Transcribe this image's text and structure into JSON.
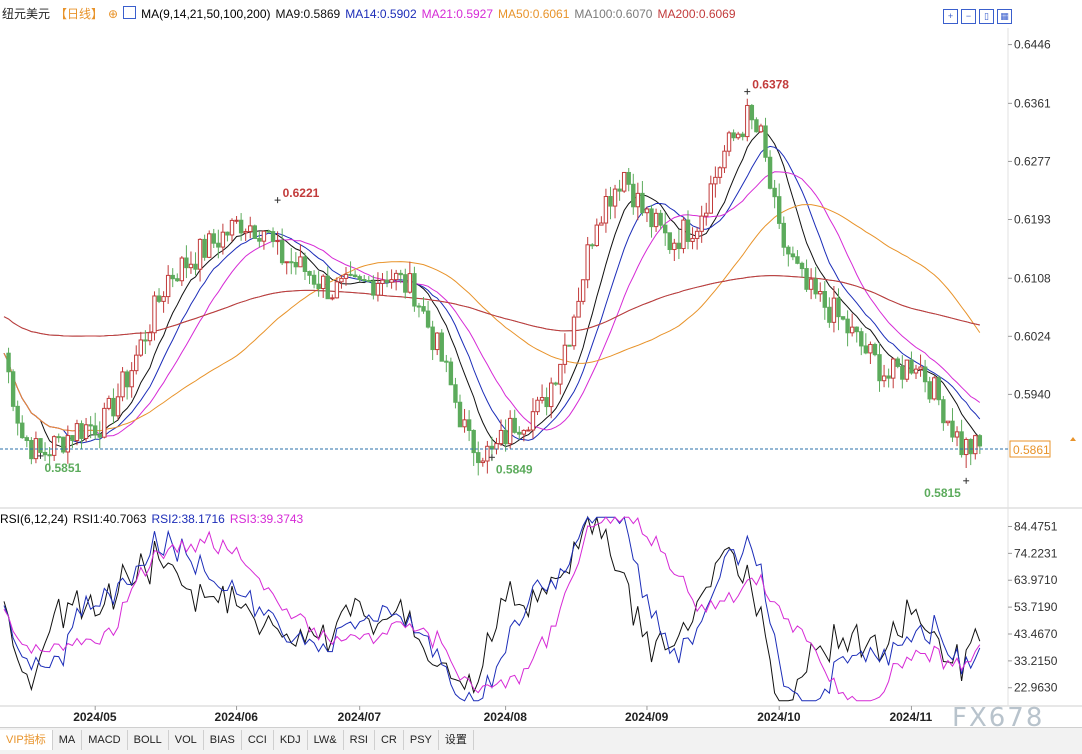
{
  "header": {
    "title": "纽元美元",
    "period": "【日线】",
    "ma_label": "MA(9,14,21,50,100,200)",
    "ma_values": [
      {
        "label": "MA9:0.5869",
        "color": "#111111"
      },
      {
        "label": "MA14:0.5902",
        "color": "#1c2db8"
      },
      {
        "label": "MA21:0.5927",
        "color": "#d62ad6"
      },
      {
        "label": "MA50:0.6061",
        "color": "#e8932a"
      },
      {
        "label": "MA100:0.6070",
        "color": "#7a7a7a"
      },
      {
        "label": "MA200:0.6069",
        "color": "#c23b3b"
      }
    ]
  },
  "toolbar_icons": [
    "zoom-in-icon",
    "zoom-out-icon",
    "fit-icon",
    "chart-type-icon"
  ],
  "rsi_header": {
    "title": "RSI(6,12,24)",
    "values": [
      {
        "label": "RSI1:40.7063",
        "color": "#111111"
      },
      {
        "label": "RSI2:38.1716",
        "color": "#1c2db8"
      },
      {
        "label": "RSI3:39.3743",
        "color": "#d62ad6"
      }
    ]
  },
  "tabs": [
    "VIP指标",
    "MA",
    "MACD",
    "BOLL",
    "VOL",
    "BIAS",
    "CCI",
    "KDJ",
    "LW&",
    "RSI",
    "CR",
    "PSY",
    "设置"
  ],
  "watermark": "FX678",
  "colors": {
    "up": "#c23b3b",
    "down": "#5cab5c",
    "current_line": "#2a6fa8"
  },
  "chart_data": [
    {
      "type": "candlestick",
      "title": "纽元美元",
      "y_ticks": [
        "0.6446",
        "0.6361",
        "0.6277",
        "0.6193",
        "0.6108",
        "0.6024",
        "0.5940"
      ],
      "ylim": [
        0.578,
        0.647
      ],
      "x_dates": [
        "2024/05",
        "2024/06",
        "2024/07",
        "2024/08",
        "2024/09",
        "2024/10",
        "2024/11"
      ],
      "annotations": [
        {
          "label": "0.5851",
          "value": 0.5851,
          "kind": "low"
        },
        {
          "label": "0.6221",
          "value": 0.6221,
          "kind": "high"
        },
        {
          "label": "0.5849",
          "value": 0.5849,
          "kind": "low"
        },
        {
          "label": "0.6378",
          "value": 0.6378,
          "kind": "high"
        },
        {
          "label": "0.5815",
          "value": 0.5815,
          "kind": "low"
        }
      ],
      "current_price": {
        "label": "0.5861",
        "value": 0.5861
      },
      "ma_lines": [
        "MA9",
        "MA14",
        "MA21",
        "MA50",
        "MA100",
        "MA200"
      ]
    },
    {
      "type": "line",
      "title": "RSI(6,12,24)",
      "y_ticks": [
        "84.4751",
        "74.2231",
        "63.9710",
        "53.7190",
        "43.4670",
        "33.2150",
        "22.9630"
      ],
      "ylim": [
        16,
        90
      ],
      "series": [
        {
          "name": "RSI1",
          "last": 40.7063
        },
        {
          "name": "RSI2",
          "last": 38.1716
        },
        {
          "name": "RSI3",
          "last": 39.3743
        }
      ]
    }
  ]
}
